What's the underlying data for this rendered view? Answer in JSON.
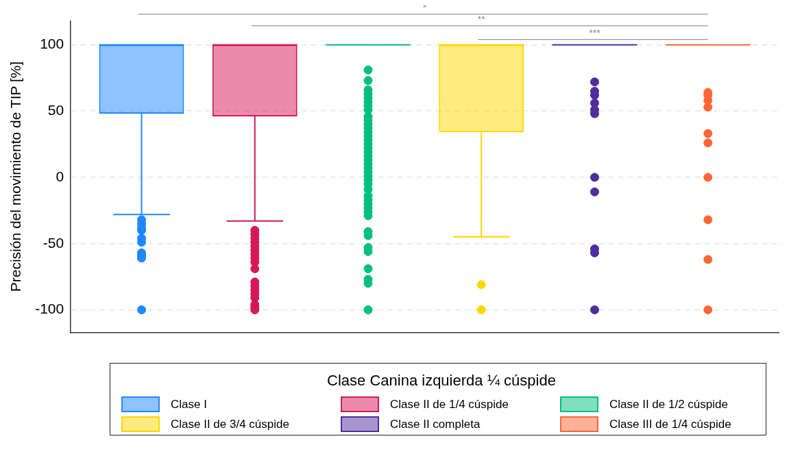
{
  "chart_data": {
    "type": "box",
    "ylabel": "Precisión del movimiento de TIP [%]",
    "legend_title": "Clase Canina izquierda ¼ cúspide",
    "categories": [
      null
    ],
    "series": [
      {
        "name": "Clase I",
        "color": "#1e88ff",
        "boxes": [
          {
            "low": -28,
            "q1": 48,
            "median": 100,
            "q3": 100,
            "high": 100,
            "outliers": [
              -32,
              -35,
              -38,
              -40,
              -46,
              -49,
              -57,
              -59,
              -61,
              -100
            ]
          }
        ]
      },
      {
        "name": "Clase II de 1/4 cúspide",
        "color": "#d6185a",
        "boxes": [
          {
            "low": -33,
            "q1": 46,
            "median": 100,
            "q3": 100,
            "high": 100,
            "outliers": [
              -40,
              -43,
              -46,
              -49,
              -52,
              -55,
              -58,
              -61,
              -64,
              -69,
              -79,
              -82,
              -85,
              -88,
              -91,
              -96,
              -98,
              -100
            ]
          }
        ]
      },
      {
        "name": "Clase II de 1/2 cúspide",
        "color": "#00c080",
        "boxes": [
          {
            "low": 100,
            "q1": 100,
            "median": 100,
            "q3": 100,
            "high": 100,
            "outliers": [
              81,
              73,
              66,
              63,
              60,
              57,
              54,
              51,
              46,
              43,
              40,
              37,
              34,
              31,
              28,
              25,
              22,
              19,
              16,
              13,
              10,
              7,
              4,
              1,
              -2,
              -5,
              -9,
              -14,
              -17,
              -20,
              -23,
              -26,
              -29,
              -41,
              -44,
              -53,
              -56,
              -69,
              -77,
              -80,
              -100
            ]
          }
        ]
      },
      {
        "name": "Clase II de 3/4 cúspide",
        "color": "#ffd700",
        "boxes": [
          {
            "low": -45,
            "q1": 34,
            "median": 100,
            "q3": 100,
            "high": 100,
            "outliers": [
              -81,
              -100
            ]
          }
        ]
      },
      {
        "name": "Clase II completa",
        "color": "#4f2d9b",
        "boxes": [
          {
            "low": 100,
            "q1": 100,
            "median": 100,
            "q3": 100,
            "high": 100,
            "outliers": [
              72,
              65,
              62,
              56,
              51,
              48,
              0,
              -11,
              -54,
              -57,
              -100
            ]
          }
        ]
      },
      {
        "name": "Clase III de 1/4 cúspide",
        "color": "#ff6633",
        "boxes": [
          {
            "low": 100,
            "q1": 100,
            "median": 100,
            "q3": 100,
            "high": 100,
            "outliers": [
              64,
              62,
              58,
              53,
              33,
              26,
              0,
              -32,
              -62,
              -100
            ]
          }
        ]
      }
    ],
    "annotations": [
      "*",
      "**",
      "***"
    ],
    "ylim": [
      -117,
      118
    ],
    "yticks": [
      -100,
      -50,
      0,
      50,
      100
    ],
    "grid": "y",
    "legend": "bottom",
    "tick_labels": "y",
    "marker": "circle"
  }
}
